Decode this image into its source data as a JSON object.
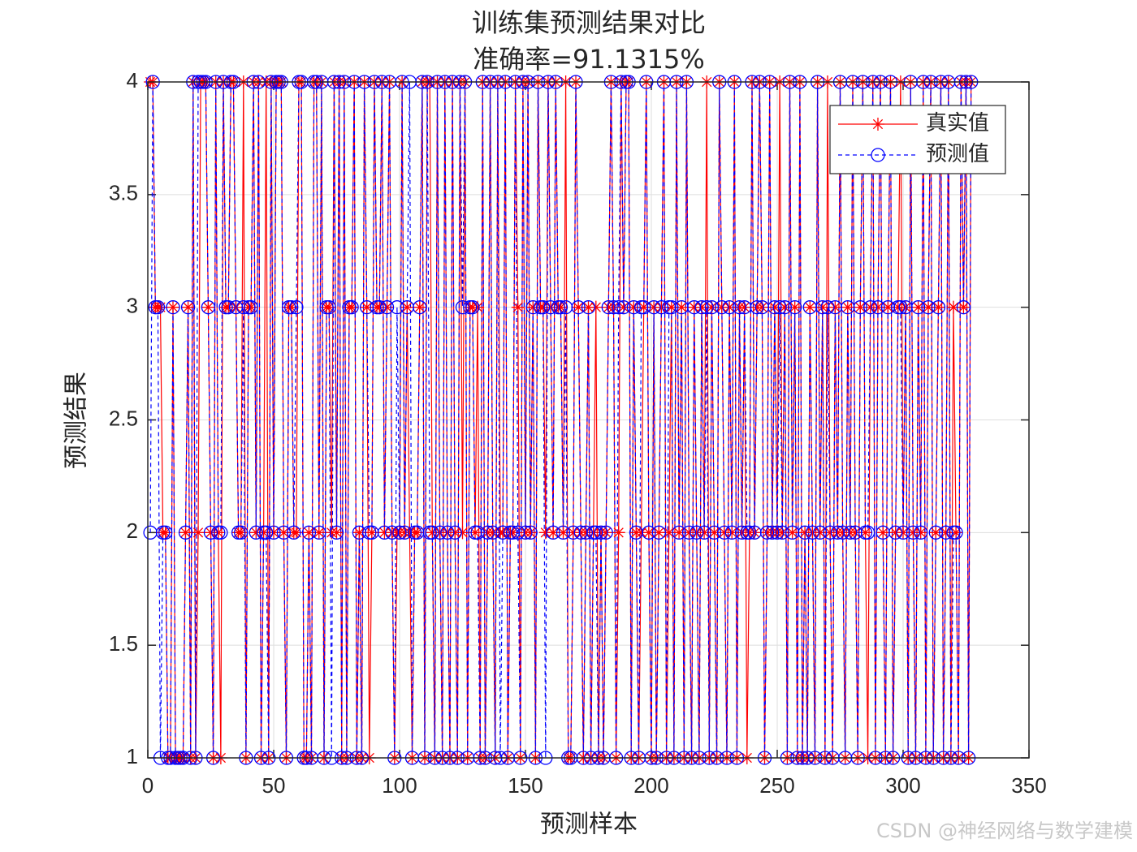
{
  "chart_data": {
    "type": "line",
    "title": "训练集预测结果对比",
    "subtitle": "准确率=91.1315%",
    "x_label": "预测样本",
    "y_label": "预测结果",
    "xlim": [
      0,
      350
    ],
    "xticks": [
      0,
      50,
      100,
      150,
      200,
      250,
      300,
      350
    ],
    "ylim": [
      1,
      4
    ],
    "yticks": [
      1,
      1.5,
      2,
      2.5,
      3,
      3.5,
      4
    ],
    "grid": true,
    "legend": "upper right",
    "watermark": "CSDN @神经网络与数学建模",
    "x": [
      1,
      2,
      3,
      4,
      5,
      6,
      7,
      8,
      9,
      10,
      11,
      12,
      13,
      14,
      15,
      16,
      17,
      18,
      19,
      20,
      21,
      22,
      23,
      24,
      25,
      26,
      27,
      28,
      29,
      30,
      31,
      32,
      33,
      34,
      35,
      36,
      37,
      38,
      39,
      40,
      41,
      42,
      43,
      44,
      45,
      46,
      47,
      48,
      49,
      50,
      51,
      52,
      53,
      54,
      55,
      56,
      57,
      58,
      59,
      60,
      61,
      62,
      63,
      64,
      65,
      66,
      67,
      68,
      69,
      70,
      71,
      72,
      73,
      74,
      75,
      76,
      77,
      78,
      79,
      80,
      81,
      82,
      83,
      84,
      85,
      86,
      87,
      88,
      89,
      90,
      91,
      92,
      93,
      94,
      95,
      96,
      97,
      98,
      99,
      100,
      101,
      102,
      103,
      104,
      105,
      106,
      107,
      108,
      109,
      110,
      111,
      112,
      113,
      114,
      115,
      116,
      117,
      118,
      119,
      120,
      121,
      122,
      123,
      124,
      125,
      126,
      127,
      128,
      129,
      130,
      131,
      132,
      133,
      134,
      135,
      136,
      137,
      138,
      139,
      140,
      141,
      142,
      143,
      144,
      145,
      146,
      147,
      148,
      149,
      150,
      151,
      152,
      153,
      154,
      155,
      156,
      157,
      158,
      159,
      160,
      161,
      162,
      163,
      164,
      165,
      166,
      167,
      168,
      169,
      170,
      171,
      172,
      173,
      174,
      175,
      176,
      177,
      178,
      179,
      180,
      181,
      182,
      183,
      184,
      185,
      186,
      187,
      188,
      189,
      190,
      191,
      192,
      193,
      194,
      195,
      196,
      197,
      198,
      199,
      200,
      201,
      202,
      203,
      204,
      205,
      206,
      207,
      208,
      209,
      210,
      211,
      212,
      213,
      214,
      215,
      216,
      217,
      218,
      219,
      220,
      221,
      222,
      223,
      224,
      225,
      226,
      227,
      228,
      229,
      230,
      231,
      232,
      233,
      234,
      235,
      236,
      237,
      238,
      239,
      240,
      241,
      242,
      243,
      244,
      245,
      246,
      247,
      248,
      249,
      250,
      251,
      252,
      253,
      254,
      255,
      256,
      257,
      258,
      259,
      260,
      261,
      262,
      263,
      264,
      265,
      266,
      267,
      268,
      269,
      270,
      271,
      272,
      273,
      274,
      275,
      276,
      277,
      278,
      279,
      280,
      281,
      282,
      283,
      284,
      285,
      286,
      287,
      288,
      289,
      290,
      291,
      292,
      293,
      294,
      295,
      296,
      297,
      298,
      299,
      300,
      301,
      302,
      303,
      304,
      305,
      306,
      307,
      308,
      309,
      310,
      311,
      312,
      313,
      314,
      315,
      316,
      317,
      318,
      319,
      320,
      321,
      322,
      323,
      324,
      325,
      326,
      327
    ],
    "series": [
      {
        "name": "真实值",
        "color": "#ff0000",
        "marker": "star",
        "dash": false,
        "values": [
          4,
          4,
          3,
          3,
          3,
          2,
          2,
          1,
          1,
          3,
          1,
          1,
          1,
          1,
          2,
          3,
          1,
          4,
          1,
          2,
          4,
          4,
          4,
          3,
          2,
          1,
          4,
          2,
          1,
          4,
          3,
          3,
          4,
          4,
          3,
          2,
          2,
          4,
          1,
          3,
          3,
          4,
          2,
          4,
          1,
          2,
          4,
          1,
          4,
          2,
          4,
          4,
          4,
          2,
          1,
          3,
          3,
          2,
          2,
          4,
          4,
          1,
          1,
          2,
          1,
          4,
          4,
          2,
          4,
          1,
          3,
          3,
          2,
          4,
          2,
          4,
          1,
          4,
          1,
          3,
          3,
          4,
          1,
          2,
          1,
          4,
          3,
          1,
          2,
          4,
          3,
          3,
          4,
          2,
          3,
          4,
          2,
          1,
          2,
          2,
          4,
          2,
          3,
          2,
          1,
          2,
          2,
          3,
          4,
          1,
          4,
          4,
          2,
          1,
          4,
          2,
          1,
          4,
          2,
          1,
          4,
          2,
          1,
          4,
          2,
          4,
          1,
          3,
          3,
          2,
          3,
          1,
          4,
          1,
          2,
          4,
          2,
          1,
          4,
          2,
          2,
          4,
          1,
          2,
          2,
          4,
          3,
          1,
          4,
          2,
          4,
          2,
          3,
          1,
          4,
          3,
          3,
          2,
          4,
          3,
          2,
          4,
          3,
          3,
          2,
          4,
          1,
          1,
          2,
          4,
          3,
          2,
          1,
          2,
          3,
          1,
          2,
          3,
          1,
          2,
          1,
          2,
          3,
          4,
          3,
          1,
          2,
          4,
          3,
          4,
          4,
          1,
          3,
          2,
          1,
          2,
          3,
          4,
          2,
          1,
          3,
          1,
          2,
          3,
          4,
          1,
          2,
          3,
          1,
          4,
          2,
          3,
          1,
          4,
          2,
          1,
          3,
          2,
          1,
          3,
          2,
          4,
          1,
          3,
          2,
          1,
          4,
          3,
          2,
          1,
          3,
          2,
          4,
          1,
          3,
          2,
          3,
          1,
          2,
          4,
          2,
          3,
          4,
          3,
          1,
          2,
          4,
          2,
          3,
          2,
          4,
          2,
          3,
          1,
          4,
          2,
          3,
          1,
          4,
          1,
          2,
          1,
          3,
          2,
          1,
          4,
          2,
          3,
          1,
          4,
          2,
          1,
          3,
          2,
          4,
          2,
          1,
          3,
          2,
          4,
          2,
          1,
          3,
          4,
          2,
          1,
          3,
          4,
          1,
          3,
          4,
          2,
          1,
          3,
          4,
          1,
          2,
          3,
          4,
          2,
          3,
          1,
          4,
          2,
          1,
          3,
          2,
          4,
          1,
          3,
          4,
          1,
          2,
          3,
          4,
          1,
          2,
          4,
          1,
          3,
          2,
          1,
          4,
          3,
          4,
          1,
          4
        ]
      },
      {
        "name": "预测值",
        "color": "#0000ff",
        "marker": "circle",
        "dash": true,
        "values": [
          2,
          4,
          3,
          3,
          1,
          2,
          2,
          1,
          1,
          3,
          1,
          1,
          1,
          1,
          2,
          3,
          1,
          4,
          1,
          4,
          4,
          4,
          4,
          3,
          2,
          1,
          4,
          2,
          2,
          4,
          3,
          3,
          4,
          4,
          3,
          2,
          2,
          3,
          1,
          3,
          3,
          4,
          2,
          4,
          1,
          2,
          2,
          1,
          4,
          2,
          4,
          4,
          4,
          2,
          1,
          3,
          3,
          2,
          3,
          4,
          4,
          1,
          1,
          2,
          1,
          4,
          4,
          2,
          4,
          1,
          3,
          3,
          1,
          4,
          2,
          4,
          1,
          4,
          1,
          3,
          3,
          4,
          1,
          2,
          1,
          4,
          3,
          2,
          2,
          4,
          3,
          3,
          4,
          2,
          3,
          4,
          2,
          1,
          3,
          2,
          4,
          2,
          3,
          4,
          1,
          2,
          2,
          3,
          4,
          1,
          4,
          2,
          2,
          1,
          4,
          2,
          1,
          4,
          2,
          1,
          4,
          2,
          1,
          4,
          3,
          4,
          1,
          3,
          3,
          2,
          2,
          1,
          4,
          1,
          2,
          4,
          2,
          1,
          4,
          1,
          2,
          4,
          1,
          2,
          2,
          4,
          2,
          1,
          4,
          2,
          4,
          2,
          3,
          1,
          4,
          3,
          3,
          1,
          4,
          3,
          2,
          4,
          3,
          3,
          2,
          3,
          1,
          1,
          2,
          4,
          3,
          2,
          1,
          2,
          3,
          1,
          2,
          2,
          1,
          2,
          1,
          2,
          3,
          4,
          3,
          1,
          3,
          4,
          3,
          4,
          4,
          1,
          3,
          2,
          1,
          3,
          3,
          4,
          2,
          1,
          3,
          1,
          2,
          3,
          4,
          1,
          3,
          3,
          1,
          4,
          2,
          3,
          1,
          4,
          2,
          1,
          3,
          2,
          1,
          3,
          2,
          3,
          1,
          3,
          2,
          1,
          4,
          3,
          2,
          1,
          3,
          2,
          4,
          1,
          3,
          2,
          3,
          2,
          2,
          4,
          2,
          3,
          4,
          3,
          1,
          2,
          4,
          2,
          3,
          2,
          3,
          2,
          3,
          1,
          4,
          2,
          3,
          1,
          4,
          1,
          2,
          1,
          3,
          2,
          1,
          4,
          2,
          3,
          1,
          3,
          2,
          1,
          3,
          2,
          4,
          2,
          1,
          3,
          2,
          4,
          2,
          1,
          3,
          4,
          2,
          2,
          3,
          4,
          1,
          3,
          4,
          2,
          1,
          3,
          4,
          1,
          2,
          3,
          3,
          2,
          3,
          1,
          4,
          2,
          1,
          3,
          2,
          4,
          1,
          3,
          4,
          1,
          2,
          3,
          4,
          1,
          2,
          4,
          1,
          2,
          2,
          1,
          4,
          3,
          4,
          1,
          4
        ]
      }
    ]
  }
}
